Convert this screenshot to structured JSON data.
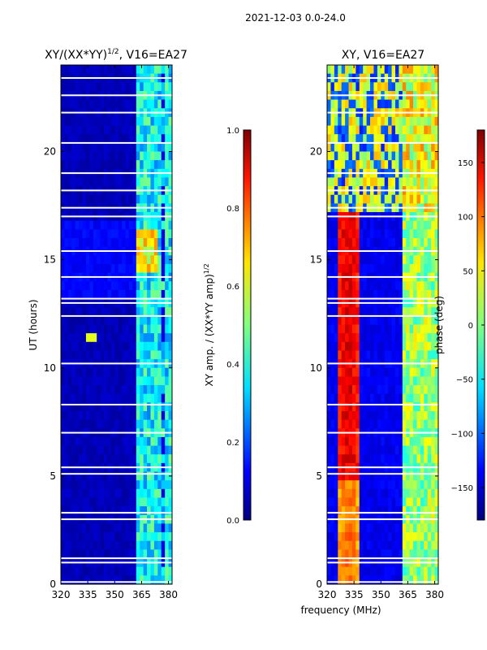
{
  "page": {
    "suptitle": "2021-12-03 0.0-24.0"
  },
  "chart_data": [
    {
      "type": "heatmap",
      "id": "amp",
      "title_main": "XY/(XX*YY)",
      "title_sup": "1/2",
      "title_tail": ", V16=EA27",
      "xlabel": "",
      "ylabel": "UT (hours)",
      "xlim": [
        320,
        382
      ],
      "ylim": [
        0,
        24
      ],
      "xticks": [
        320,
        335,
        350,
        365,
        380
      ],
      "yticks": [
        0,
        5,
        10,
        15,
        20
      ],
      "colorbar": {
        "label_main": "XY amp. / (XX*YY amp)",
        "label_sup": "1/2",
        "range": [
          0.0,
          1.0
        ],
        "ticks": [
          "0.0",
          "0.2",
          "0.4",
          "0.6",
          "0.8",
          "1.0"
        ],
        "tick_values": [
          0.0,
          0.2,
          0.4,
          0.6,
          0.8,
          1.0
        ]
      },
      "description": "normalized XY amplitude vs frequency and UT; low (~0.0-0.1) below 362 MHz, ~0.3-0.5 between 362-380 MHz, ~0.7 peaks near 363-372 MHz at 14.5-16 h"
    },
    {
      "type": "heatmap",
      "id": "phase",
      "title_main": "XY, V16=EA27",
      "xlabel": "frequency (MHz)",
      "ylabel": "",
      "xlim": [
        320,
        382
      ],
      "ylim": [
        0,
        24
      ],
      "xticks": [
        320,
        335,
        350,
        365,
        380
      ],
      "yticks": [
        0,
        5,
        10,
        15,
        20
      ],
      "colorbar": {
        "label_main": "phase (deg)",
        "range": [
          -180,
          180
        ],
        "ticks": [
          "150",
          "100",
          "50",
          "0",
          "−50",
          "−100",
          "−150"
        ],
        "tick_values": [
          150,
          100,
          50,
          0,
          -50,
          -100,
          -150
        ]
      },
      "description": "XY phase vs frequency and UT; ~+100 to +180 deg band around 328-340 MHz, ~-170 deg elsewhere below 362 MHz, ~0 to +50 deg at 362-380 MHz"
    }
  ]
}
